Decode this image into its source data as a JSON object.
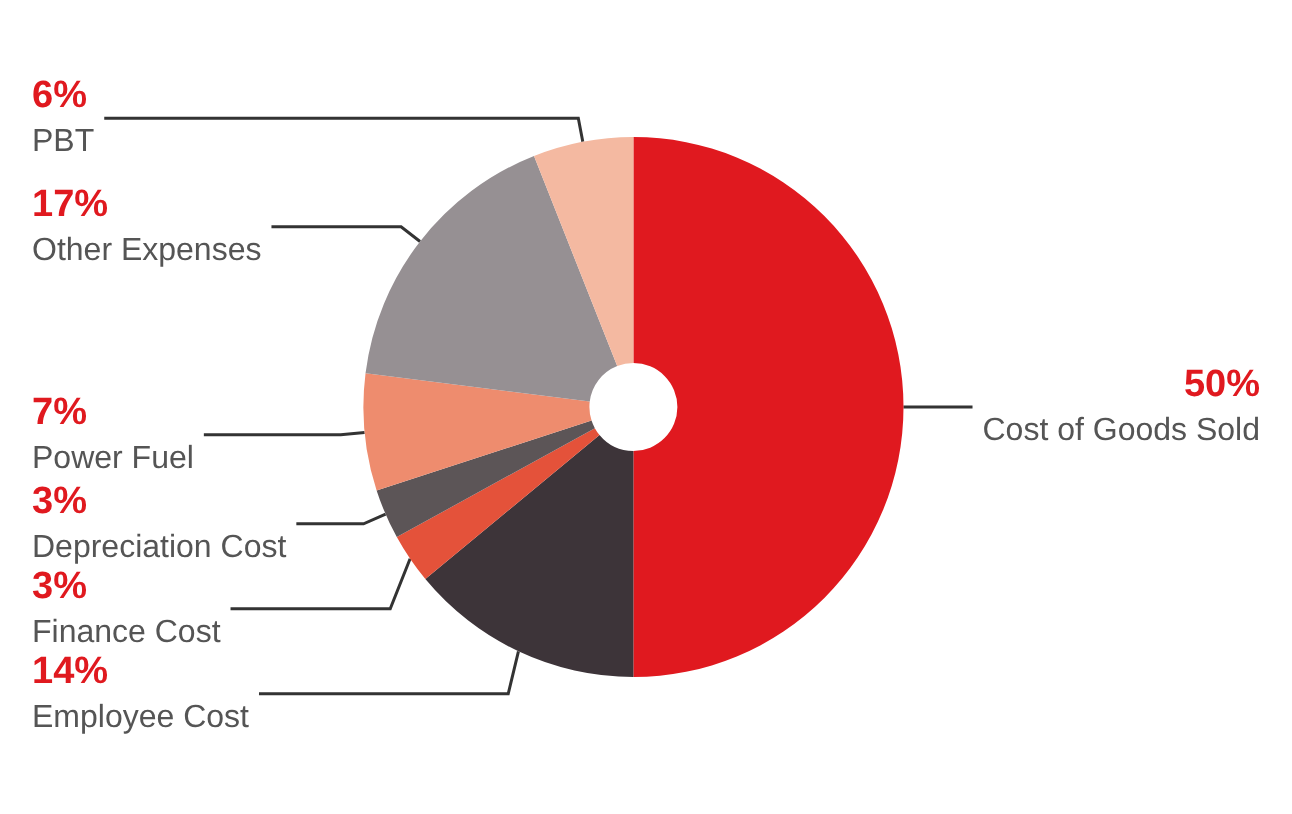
{
  "chart_data": {
    "type": "donut",
    "categories": [
      "Cost of Goods Sold",
      "Employee Cost",
      "Finance Cost",
      "Depreciation Cost",
      "Power Fuel",
      "Other Expenses",
      "PBT"
    ],
    "values": [
      50,
      14,
      3,
      3,
      7,
      17,
      6
    ],
    "colors": [
      "#e0191f",
      "#3d3439",
      "#e4523a",
      "#5c5557",
      "#ee8c6e",
      "#969093",
      "#f4b9a1"
    ],
    "value_labels": [
      "50%",
      "14%",
      "3%",
      "3%",
      "7%",
      "17%",
      "6%"
    ],
    "legend": false
  }
}
